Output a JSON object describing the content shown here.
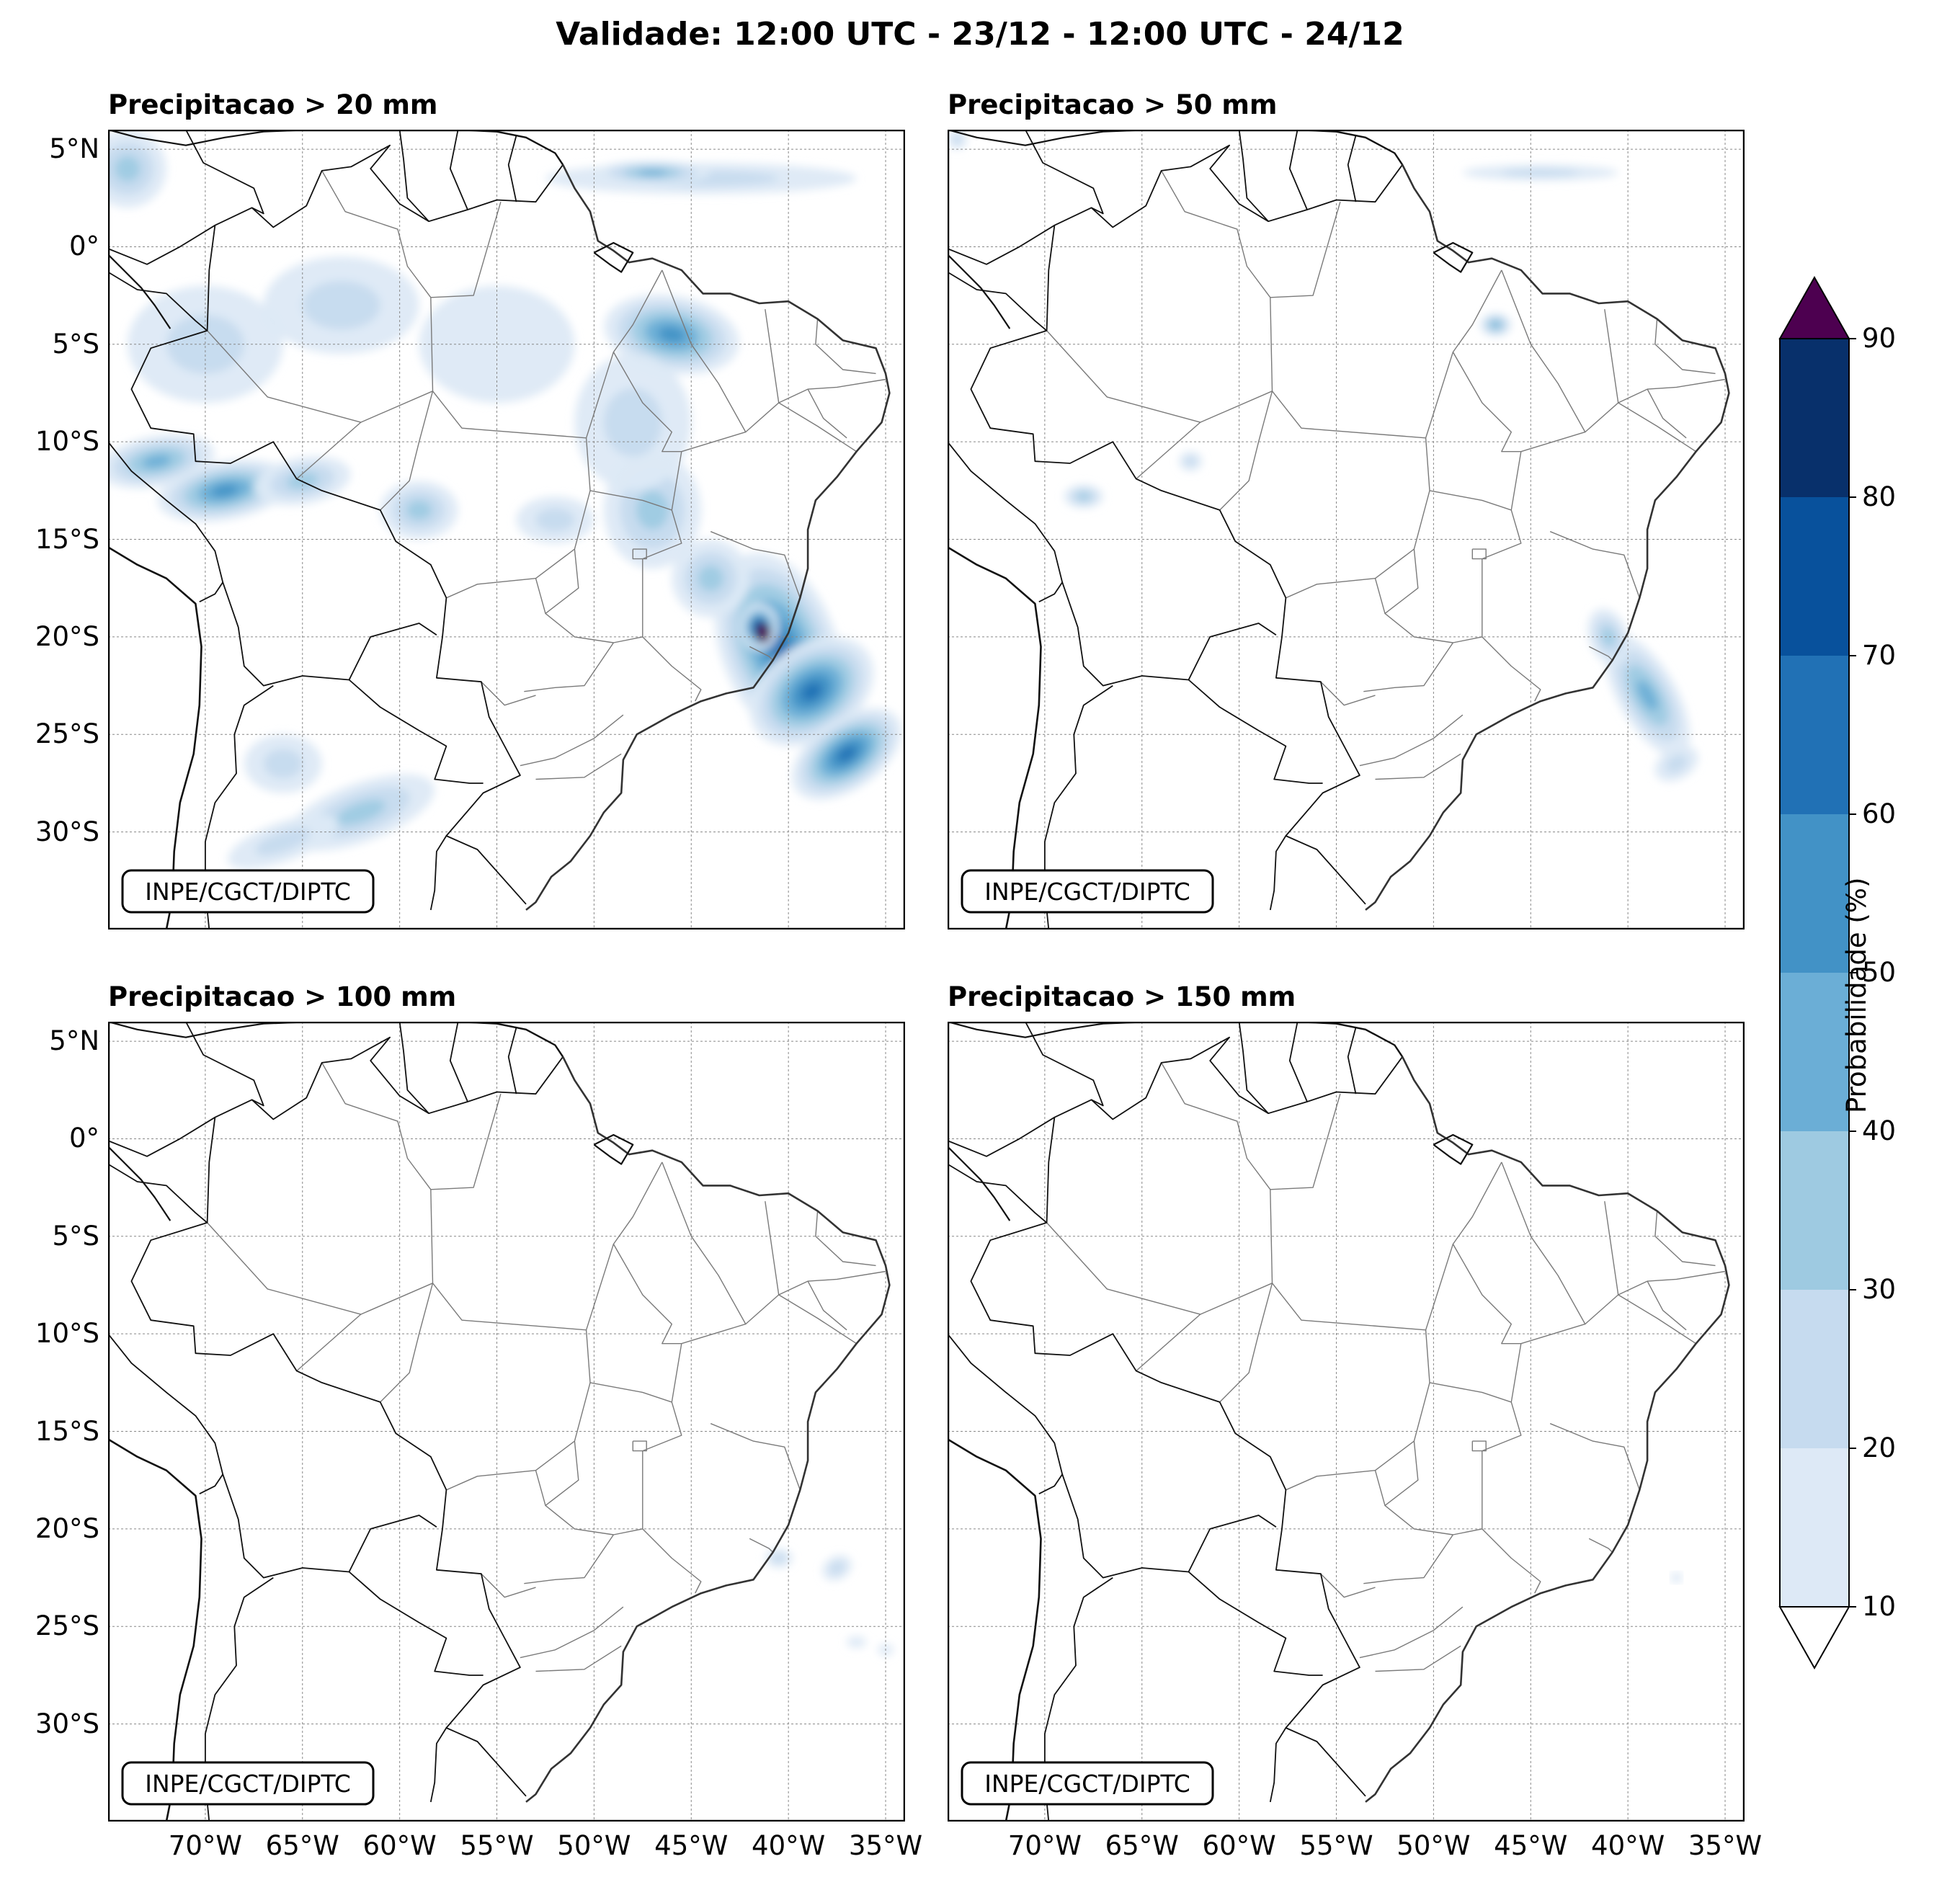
{
  "figure": {
    "title": "Validade: 12:00 UTC - 23/12 - 12:00 UTC - 24/12"
  },
  "panels": [
    {
      "title": "Precipitacao > 20 mm",
      "credit": "INPE/CGCT/DIPTC",
      "intensity": "high"
    },
    {
      "title": "Precipitacao > 50 mm",
      "credit": "INPE/CGCT/DIPTC",
      "intensity": "medium"
    },
    {
      "title": "Precipitacao > 100 mm",
      "credit": "INPE/CGCT/DIPTC",
      "intensity": "low"
    },
    {
      "title": "Precipitacao > 150 mm",
      "credit": "INPE/CGCT/DIPTC",
      "intensity": "minimal"
    }
  ],
  "axes": {
    "lat_labels": [
      "5°N",
      "0°",
      "5°S",
      "10°S",
      "15°S",
      "20°S",
      "25°S",
      "30°S"
    ],
    "lon_labels": [
      "70°W",
      "65°W",
      "60°W",
      "55°W",
      "50°W",
      "45°W",
      "40°W",
      "35°W"
    ],
    "lat_range": [
      -35,
      6
    ],
    "lon_range": [
      -75,
      -34
    ]
  },
  "colorbar": {
    "label": "Probabilidade (%)",
    "ticks": [
      "10",
      "20",
      "30",
      "40",
      "50",
      "60",
      "70",
      "80",
      "90"
    ],
    "colors": [
      "#dde9f6",
      "#c6dbef",
      "#9ecae1",
      "#6baed6",
      "#4292c6",
      "#2171b5",
      "#08519c",
      "#08306b"
    ],
    "over_color": "#4d0050",
    "under_color": "#ffffff"
  }
}
